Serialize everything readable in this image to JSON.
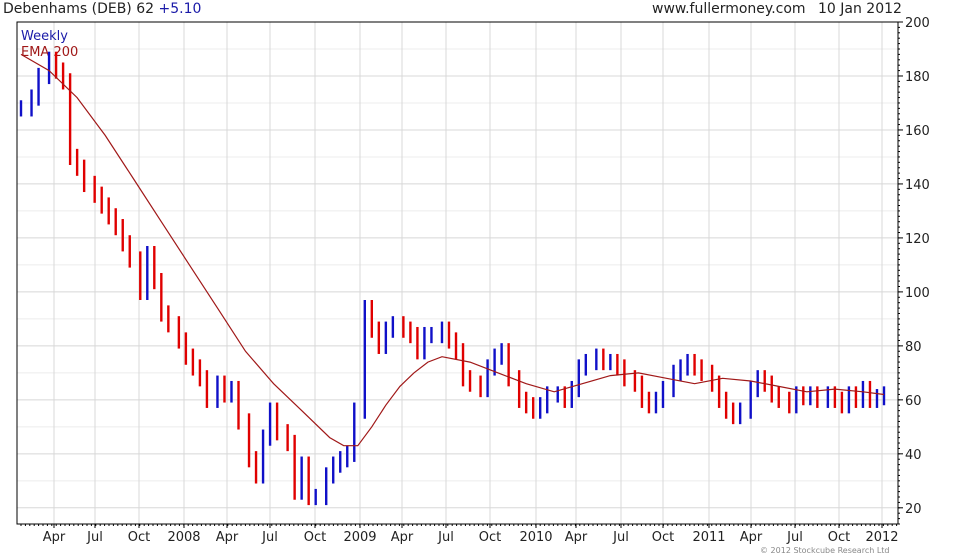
{
  "header": {
    "title": "Debenhams (DEB) 62",
    "change": "+5.10",
    "source": "www.fullermoney.com",
    "date": "10 Jan 2012"
  },
  "legend": {
    "timeframe": "Weekly",
    "ma_label": "EMA 200"
  },
  "footer": {
    "copyright": "© 2012 Stockcube Research Ltd"
  },
  "colors": {
    "up_bar": "#1010c8",
    "down_bar": "#e00000",
    "ema": "#a01818",
    "grid": "#d8d8d8",
    "axis": "#000000",
    "timeframe_text": "#1a1aa8",
    "ema_text": "#a01818"
  },
  "chart_data": {
    "type": "line",
    "title": "Debenhams (DEB) 62",
    "xlabel": "",
    "ylabel": "",
    "ylim": [
      14,
      200
    ],
    "y_ticks": [
      20,
      40,
      60,
      80,
      100,
      120,
      140,
      160,
      180,
      200
    ],
    "x_ticks": [
      "Apr",
      "Jul",
      "Oct",
      "2008",
      "Apr",
      "Jul",
      "Oct",
      "2009",
      "Apr",
      "Jul",
      "Oct",
      "2010",
      "Apr",
      "Jul",
      "Oct",
      "2011",
      "Apr",
      "Jul",
      "Oct",
      "2012"
    ],
    "grid": true,
    "price_axis": "right",
    "series": [
      {
        "name": "Weekly",
        "style": "bars",
        "x": [
          0,
          3,
          5,
          8,
          10,
          12,
          14,
          16,
          18,
          21,
          23,
          25,
          27,
          29,
          31,
          34,
          36,
          38,
          40,
          42,
          45,
          47,
          49,
          51,
          53,
          56,
          58,
          60,
          62,
          65,
          67,
          69,
          71,
          73,
          76,
          78,
          80,
          82,
          84,
          87,
          89,
          91,
          93,
          95,
          98,
          100,
          102,
          104,
          106,
          109,
          111,
          113,
          115,
          117,
          120,
          122,
          124,
          126,
          128,
          131,
          133,
          135,
          137,
          139,
          142,
          144,
          146,
          148,
          150,
          153,
          155,
          157,
          159,
          161,
          164,
          166,
          168,
          170,
          172,
          175,
          177,
          179,
          181,
          183,
          186,
          188,
          190,
          192,
          194,
          197,
          199,
          201,
          203,
          205,
          208,
          210,
          212,
          214,
          216,
          219,
          221,
          223,
          225,
          227,
          230,
          232,
          234,
          236,
          238,
          240,
          242,
          244,
          246
        ],
        "values": [
          168,
          172,
          180,
          186,
          182,
          178,
          150,
          146,
          140,
          136,
          132,
          128,
          124,
          118,
          112,
          100,
          114,
          104,
          92,
          88,
          82,
          76,
          72,
          68,
          60,
          66,
          62,
          64,
          52,
          38,
          32,
          46,
          56,
          48,
          44,
          26,
          36,
          24,
          24,
          32,
          36,
          38,
          40,
          56,
          94,
          86,
          80,
          86,
          88,
          86,
          84,
          78,
          84,
          84,
          86,
          82,
          78,
          68,
          66,
          64,
          72,
          76,
          78,
          68,
          60,
          58,
          56,
          58,
          62,
          62,
          60,
          64,
          72,
          74,
          76,
          74,
          74,
          72,
          68,
          66,
          60,
          58,
          60,
          64,
          70,
          72,
          74,
          72,
          70,
          66,
          60,
          56,
          54,
          56,
          64,
          68,
          66,
          62,
          60,
          58,
          62,
          61,
          62,
          60,
          62,
          60,
          58,
          62,
          60,
          64,
          60,
          61,
          62
        ]
      },
      {
        "name": "EMA 200",
        "style": "line",
        "x": [
          0,
          8,
          16,
          24,
          32,
          40,
          48,
          56,
          64,
          72,
          80,
          88,
          92,
          96,
          100,
          104,
          108,
          112,
          116,
          120,
          128,
          136,
          144,
          152,
          160,
          168,
          176,
          184,
          192,
          200,
          208,
          216,
          224,
          232,
          240,
          246
        ],
        "values": [
          188,
          182,
          172,
          158,
          142,
          126,
          110,
          94,
          78,
          66,
          56,
          46,
          43,
          43,
          50,
          58,
          65,
          70,
          74,
          76,
          74,
          70,
          66,
          63,
          66,
          69,
          70,
          68,
          66,
          68,
          67,
          65,
          63,
          64,
          63,
          62
        ]
      }
    ]
  }
}
